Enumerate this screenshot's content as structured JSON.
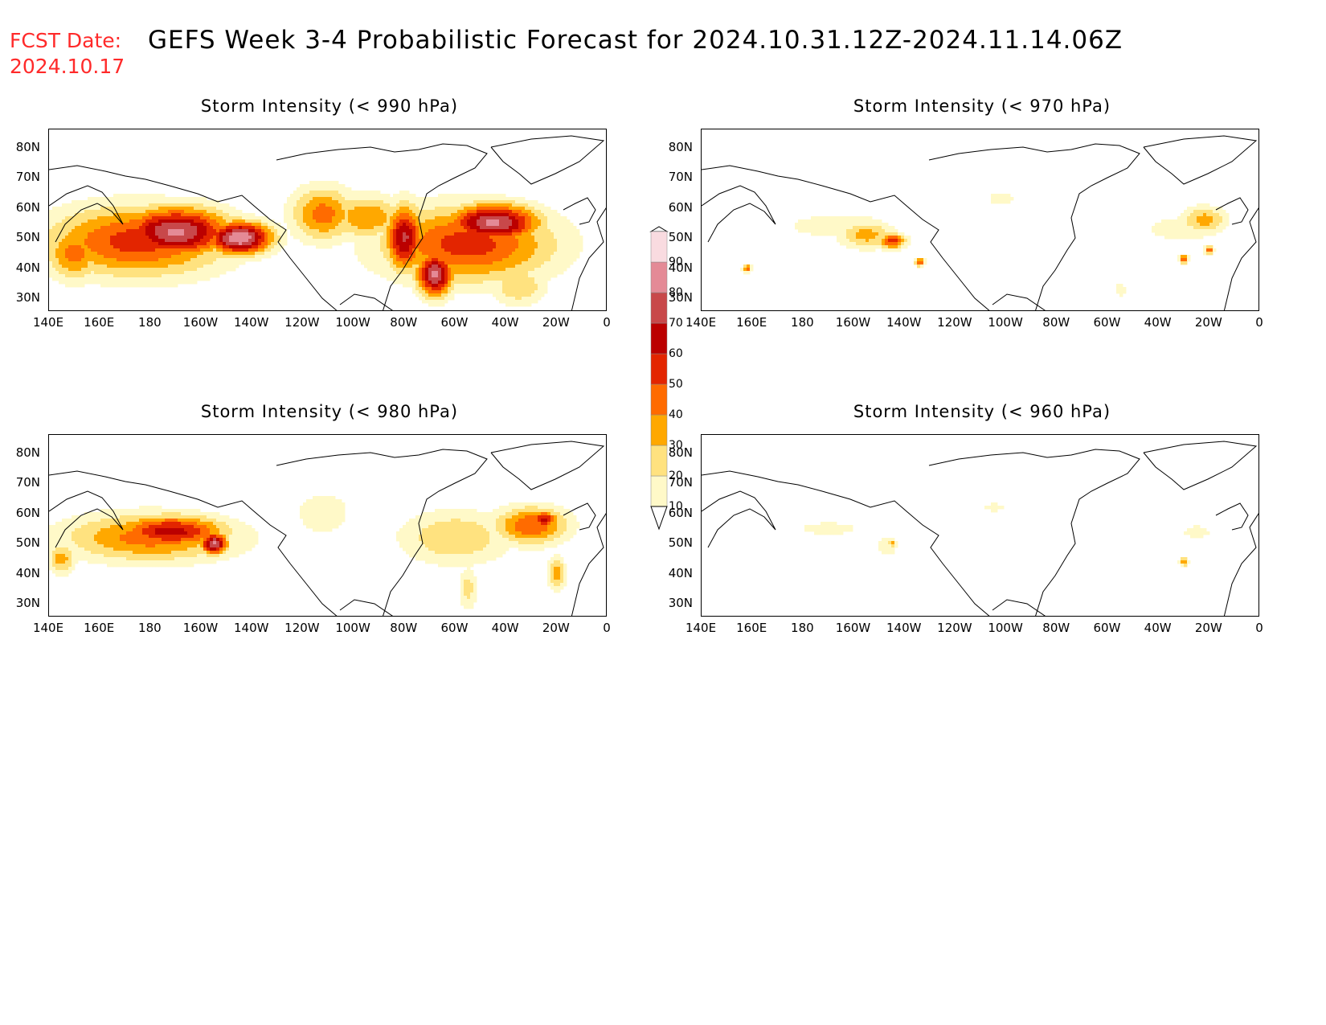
{
  "header": {
    "fcst_label": "FCST Date:",
    "fcst_date": "2024.10.17",
    "title": "GEFS Week 3-4 Probabilistic Forecast for 2024.10.31.12Z-2024.11.14.06Z"
  },
  "axes": {
    "lat_labels": [
      "80N",
      "70N",
      "60N",
      "50N",
      "40N",
      "30N"
    ],
    "lon_labels": [
      "140E",
      "160E",
      "180",
      "160W",
      "140W",
      "120W",
      "100W",
      "80W",
      "60W",
      "40W",
      "20W",
      "0"
    ]
  },
  "panels": [
    {
      "id": "p990",
      "title": "Storm Intensity (< 990 hPa)",
      "blobs": [
        {
          "lon": 175,
          "lat": 49,
          "rlon": 40,
          "rlat": 13,
          "level": 55
        },
        {
          "lon": 190,
          "lat": 52,
          "rlon": 24,
          "rlat": 9,
          "level": 82
        },
        {
          "lon": 215,
          "lat": 50,
          "rlon": 14,
          "rlat": 6,
          "level": 90
        },
        {
          "lon": 150,
          "lat": 45,
          "rlon": 12,
          "rlat": 10,
          "level": 45
        },
        {
          "lon": 248,
          "lat": 58,
          "rlon": 14,
          "rlat": 10,
          "level": 45
        },
        {
          "lon": 265,
          "lat": 57,
          "rlon": 16,
          "rlat": 8,
          "level": 40
        },
        {
          "lon": 305,
          "lat": 48,
          "rlon": 38,
          "rlat": 14,
          "level": 55
        },
        {
          "lon": 315,
          "lat": 55,
          "rlon": 20,
          "rlat": 7,
          "level": 82
        },
        {
          "lon": 292,
          "lat": 38,
          "rlon": 8,
          "rlat": 8,
          "level": 82
        },
        {
          "lon": 325,
          "lat": 34,
          "rlon": 12,
          "rlat": 7,
          "level": 30
        },
        {
          "lon": 280,
          "lat": 50,
          "rlon": 8,
          "rlat": 12,
          "level": 72
        }
      ]
    },
    {
      "id": "p970",
      "title": "Storm Intensity (< 970 hPa)",
      "blobs": [
        {
          "lon": 195,
          "lat": 54,
          "rlon": 32,
          "rlat": 6,
          "level": 15
        },
        {
          "lon": 205,
          "lat": 51,
          "rlon": 12,
          "rlat": 5,
          "level": 35
        },
        {
          "lon": 215,
          "lat": 49,
          "rlon": 6,
          "rlat": 3,
          "level": 55
        },
        {
          "lon": 226,
          "lat": 42,
          "rlon": 2,
          "rlat": 1.5,
          "level": 55
        },
        {
          "lon": 158,
          "lat": 40,
          "rlon": 2,
          "rlat": 1.5,
          "level": 45
        },
        {
          "lon": 330,
          "lat": 53,
          "rlon": 22,
          "rlat": 6,
          "level": 15
        },
        {
          "lon": 338,
          "lat": 56,
          "rlon": 10,
          "rlat": 5,
          "level": 35
        },
        {
          "lon": 330,
          "lat": 43,
          "rlon": 2,
          "rlat": 1.5,
          "level": 55
        },
        {
          "lon": 340,
          "lat": 46,
          "rlon": 2,
          "rlat": 1.5,
          "level": 55
        },
        {
          "lon": 258,
          "lat": 63,
          "rlon": 8,
          "rlat": 3,
          "level": 15
        },
        {
          "lon": 305,
          "lat": 33,
          "rlon": 3,
          "rlat": 4,
          "level": 15
        }
      ]
    },
    {
      "id": "p980",
      "title": "Storm Intensity (< 980 hPa)",
      "blobs": [
        {
          "lon": 180,
          "lat": 52,
          "rlon": 38,
          "rlat": 9,
          "level": 45
        },
        {
          "lon": 188,
          "lat": 54,
          "rlon": 24,
          "rlat": 6,
          "level": 65
        },
        {
          "lon": 205,
          "lat": 50,
          "rlon": 6,
          "rlat": 4,
          "level": 82
        },
        {
          "lon": 145,
          "lat": 45,
          "rlon": 6,
          "rlat": 6,
          "level": 35
        },
        {
          "lon": 248,
          "lat": 60,
          "rlon": 12,
          "rlat": 8,
          "level": 20
        },
        {
          "lon": 300,
          "lat": 52,
          "rlon": 24,
          "rlat": 10,
          "level": 30
        },
        {
          "lon": 330,
          "lat": 56,
          "rlon": 16,
          "rlat": 7,
          "level": 50
        },
        {
          "lon": 335,
          "lat": 58,
          "rlon": 6,
          "rlat": 3,
          "level": 65
        },
        {
          "lon": 305,
          "lat": 35,
          "rlon": 4,
          "rlat": 8,
          "level": 25
        },
        {
          "lon": 340,
          "lat": 40,
          "rlon": 4,
          "rlat": 6,
          "level": 35
        }
      ]
    },
    {
      "id": "p960",
      "title": "Storm Intensity (< 960 hPa)",
      "blobs": [
        {
          "lon": 190,
          "lat": 55,
          "rlon": 18,
          "rlat": 3,
          "level": 15
        },
        {
          "lon": 213,
          "lat": 49,
          "rlon": 6,
          "rlat": 5,
          "level": 15
        },
        {
          "lon": 215,
          "lat": 50,
          "rlon": 2,
          "rlat": 1.5,
          "level": 35
        },
        {
          "lon": 335,
          "lat": 54,
          "rlon": 8,
          "rlat": 3,
          "level": 15
        },
        {
          "lon": 330,
          "lat": 44,
          "rlon": 2,
          "rlat": 2,
          "level": 35
        },
        {
          "lon": 255,
          "lat": 62,
          "rlon": 6,
          "rlat": 2,
          "level": 15
        }
      ]
    }
  ],
  "colorbar": {
    "levels": [
      10,
      20,
      30,
      40,
      50,
      60,
      70,
      80,
      90
    ],
    "labels": [
      "10",
      "20",
      "30",
      "40",
      "50",
      "60",
      "70",
      "80",
      "90"
    ],
    "colors": [
      "#fff9c8",
      "#ffe27f",
      "#ffa800",
      "#ff6b00",
      "#e32500",
      "#bb0000",
      "#c8484a",
      "#e48a96",
      "#f9dbe0"
    ]
  }
}
